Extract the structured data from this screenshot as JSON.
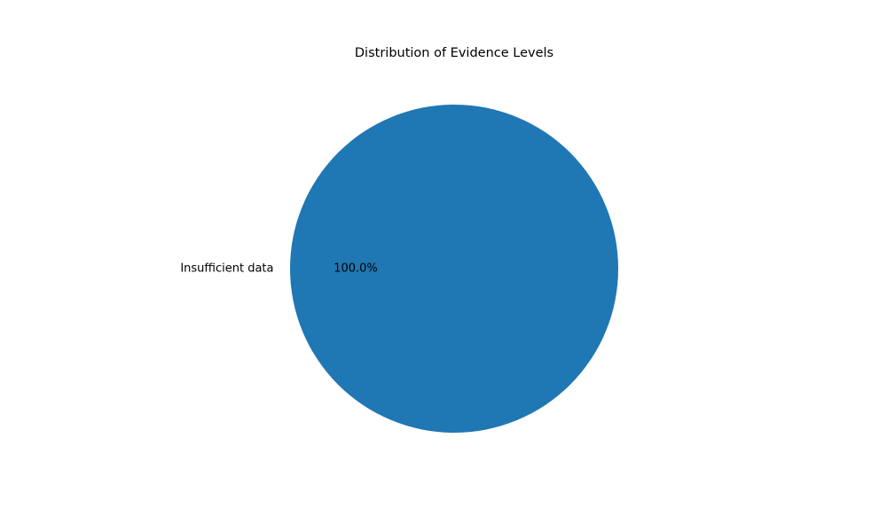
{
  "chart_data": {
    "type": "pie",
    "title": "Distribution of Evidence Levels",
    "slices": [
      {
        "label": "Insufficient data",
        "value": 100.0,
        "percent_label": "100.0%",
        "color": "#1f77b4"
      }
    ],
    "start_angle": 0,
    "legend": "none"
  }
}
